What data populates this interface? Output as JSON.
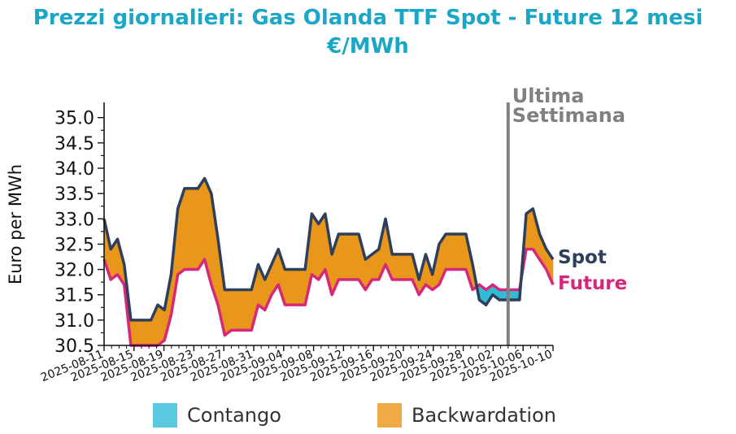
{
  "chart_data": {
    "type": "area",
    "title": "Prezzi giornalieri: Gas Olanda TTF Spot - Future 12 mesi",
    "subtitle": "€/MWh",
    "ylabel": "Euro per MWh",
    "xlabel": "",
    "ylim": [
      30.5,
      35.3
    ],
    "yticks": [
      "30.5",
      "31.0",
      "31.5",
      "32.0",
      "32.5",
      "33.0",
      "33.5",
      "34.0",
      "34.5",
      "35.0"
    ],
    "xticks": [
      "2025-08-11",
      "2025-08-15",
      "2025-08-19",
      "2025-08-23",
      "2025-08-27",
      "2025-08-31",
      "2025-09-04",
      "2025-09-08",
      "2025-09-12",
      "2025-09-16",
      "2025-09-20",
      "2025-09-24",
      "2025-09-28",
      "2025-10-02",
      "2025-10-06",
      "2025-10-10"
    ],
    "x_start": "2025-08-11",
    "x_end": "2025-10-10",
    "series": [
      {
        "name": "Spot",
        "color": "#2e3f5c",
        "values": [
          33.0,
          32.4,
          32.6,
          32.1,
          31.0,
          31.0,
          31.0,
          31.0,
          31.3,
          31.2,
          31.9,
          33.2,
          33.6,
          33.6,
          33.6,
          33.8,
          33.5,
          32.6,
          31.6,
          31.6,
          31.6,
          31.6,
          31.6,
          32.1,
          31.8,
          32.1,
          32.4,
          32.0,
          32.0,
          32.0,
          32.0,
          33.1,
          32.9,
          33.1,
          32.3,
          32.7,
          32.7,
          32.7,
          32.7,
          32.2,
          32.3,
          32.4,
          33.0,
          32.3,
          32.3,
          32.3,
          32.3,
          31.8,
          32.3,
          31.9,
          32.5,
          32.7,
          32.7,
          32.7,
          32.7,
          32.1,
          31.4,
          31.3,
          31.5,
          31.4,
          31.4,
          31.4,
          31.4,
          33.1,
          33.2,
          32.7,
          32.4,
          32.2
        ]
      },
      {
        "name": "Future",
        "color": "#d6277a",
        "values": [
          32.2,
          31.8,
          31.9,
          31.7,
          30.5,
          30.5,
          30.5,
          30.5,
          30.5,
          30.6,
          31.1,
          31.9,
          32.0,
          32.0,
          32.0,
          32.2,
          31.7,
          31.3,
          30.7,
          30.8,
          30.8,
          30.8,
          30.8,
          31.3,
          31.2,
          31.5,
          31.7,
          31.3,
          31.3,
          31.3,
          31.3,
          31.9,
          31.8,
          32.0,
          31.5,
          31.8,
          31.8,
          31.8,
          31.8,
          31.6,
          31.8,
          31.8,
          32.1,
          31.8,
          31.8,
          31.8,
          31.8,
          31.5,
          31.7,
          31.6,
          31.7,
          32.0,
          32.0,
          32.0,
          32.0,
          31.6,
          31.7,
          31.6,
          31.7,
          31.6,
          31.6,
          31.6,
          31.6,
          32.4,
          32.4,
          32.2,
          32.0,
          31.7
        ]
      }
    ],
    "fill_colors": {
      "contango": "#33bbd6",
      "backwardation": "#e8971a"
    },
    "marker": {
      "label_line1": "Ultima",
      "label_line2": "Settimana",
      "date": "2025-10-04",
      "color": "#808080"
    },
    "end_labels": {
      "spot": "Spot",
      "future": "Future"
    },
    "legend": [
      {
        "label": "Contango",
        "color": "#5ac9e0"
      },
      {
        "label": "Backwardation",
        "color": "#eeaa44"
      }
    ],
    "legend_placement": "bottom",
    "grid": false
  }
}
